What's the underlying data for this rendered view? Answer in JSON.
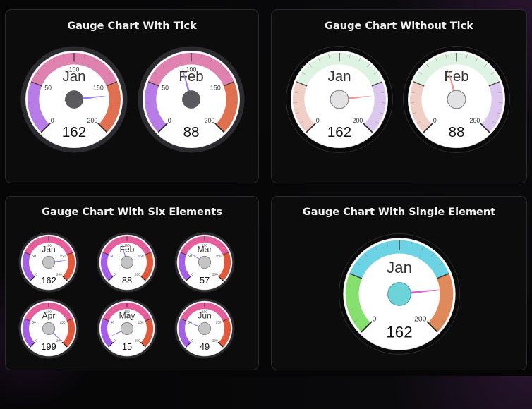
{
  "cards": [
    {
      "title": "Gauge Chart With Tick",
      "gauges": [
        {
          "label": "Jan",
          "value": 162
        },
        {
          "label": "Feb",
          "value": 88
        }
      ]
    },
    {
      "title": "Gauge Chart Without Tick",
      "gauges": [
        {
          "label": "Jan",
          "value": 162
        },
        {
          "label": "Feb",
          "value": 88
        }
      ]
    },
    {
      "title": "Gauge Chart With Six Elements",
      "gauges": [
        {
          "label": "Jan",
          "value": 162
        },
        {
          "label": "Feb",
          "value": 88
        },
        {
          "label": "Mar",
          "value": 57
        },
        {
          "label": "Apr",
          "value": 199
        },
        {
          "label": "May",
          "value": 15
        },
        {
          "label": "Jun",
          "value": 49
        }
      ]
    },
    {
      "title": "Gauge Chart With Single Element",
      "gauges": [
        {
          "label": "Jan",
          "value": 162
        }
      ]
    }
  ],
  "chart_data": [
    {
      "type": "gauge",
      "title": "Gauge Chart With Tick",
      "categories": [
        "Jan",
        "Feb"
      ],
      "values": [
        162,
        88
      ],
      "range": [
        0,
        200
      ],
      "tick_labels": [
        "0",
        "50",
        "100",
        "150",
        "200"
      ],
      "bands": [
        {
          "from": 0,
          "to": 50,
          "color": "#b77ce8"
        },
        {
          "from": 50,
          "to": 150,
          "color": "#e082b0"
        },
        {
          "from": 150,
          "to": 200,
          "color": "#e07050"
        }
      ],
      "needle_color": "#9a7af0",
      "hub_color": "#5a5a5e"
    },
    {
      "type": "gauge",
      "title": "Gauge Chart Without Tick",
      "categories": [
        "Jan",
        "Feb"
      ],
      "values": [
        162,
        88
      ],
      "range": [
        0,
        200
      ],
      "tick_labels": [
        "0",
        "200"
      ],
      "bands": [
        {
          "from": 0,
          "to": 50,
          "color": "#f0cfc6"
        },
        {
          "from": 50,
          "to": 150,
          "color": "#def3e1"
        },
        {
          "from": 150,
          "to": 200,
          "color": "#dcc8ef"
        }
      ],
      "needle_color": "#ee9393",
      "hub_color": "#e2e2e4"
    },
    {
      "type": "gauge",
      "title": "Gauge Chart With Six Elements",
      "categories": [
        "Jan",
        "Feb",
        "Mar",
        "Apr",
        "May",
        "Jun"
      ],
      "values": [
        162,
        88,
        57,
        199,
        15,
        49
      ],
      "range": [
        0,
        200
      ],
      "tick_labels": [
        "0",
        "50",
        "100",
        "150",
        "200"
      ],
      "bands": [
        {
          "from": 0,
          "to": 50,
          "color": "#a45ee8"
        },
        {
          "from": 50,
          "to": 150,
          "color": "#e65f9c"
        },
        {
          "from": 150,
          "to": 200,
          "color": "#e2583a"
        }
      ],
      "needle_color": "#9a7af0",
      "hub_color": "#c4c4c6"
    },
    {
      "type": "gauge",
      "title": "Gauge Chart With Single Element",
      "categories": [
        "Jan"
      ],
      "values": [
        162
      ],
      "range": [
        0,
        200
      ],
      "tick_labels": [
        "0",
        "200"
      ],
      "bands": [
        {
          "from": 0,
          "to": 50,
          "color": "#86e06e"
        },
        {
          "from": 50,
          "to": 150,
          "color": "#6cd3e4"
        },
        {
          "from": 150,
          "to": 200,
          "color": "#e0895a"
        }
      ],
      "needle_color": "#d763d0",
      "hub_color": "#6cd3d8"
    }
  ]
}
